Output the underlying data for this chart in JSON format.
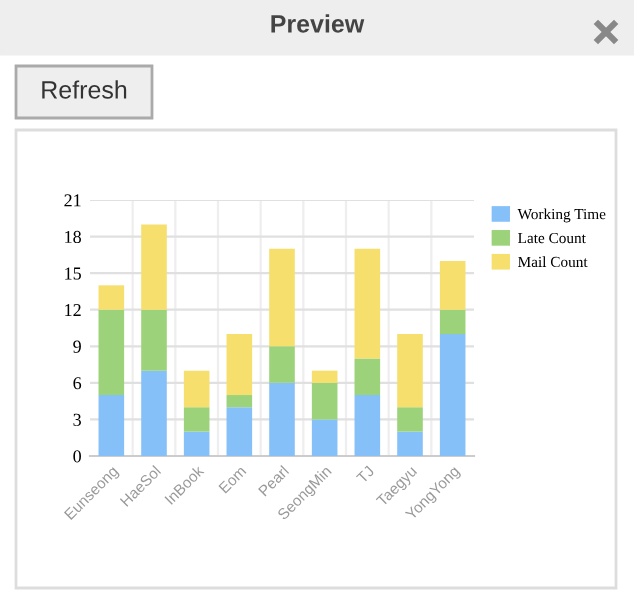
{
  "chart_data": {
    "type": "bar",
    "title": "Preview",
    "annotations": [
      "Refresh"
    ],
    "categories": [
      "Eunseong",
      "HaeSol",
      "InBook",
      "Eom",
      "Pearl",
      "SeongMin",
      "TJ",
      "Taegyu",
      "YongYong"
    ],
    "series": [
      {
        "name": "Working Time",
        "color": "#86c0f8",
        "values": [
          5,
          7,
          2,
          4,
          6,
          3,
          5,
          2,
          10
        ]
      },
      {
        "name": "Late Count",
        "color": "#9cd27a",
        "values": [
          7,
          5,
          2,
          1,
          3,
          3,
          3,
          2,
          2
        ]
      },
      {
        "name": "Mail Count",
        "color": "#f6df6c",
        "values": [
          2,
          7,
          3,
          5,
          8,
          1,
          9,
          6,
          4
        ]
      }
    ],
    "stacked": true,
    "ylim": [
      0,
      21
    ],
    "yticks": [
      0,
      3,
      6,
      9,
      12,
      15,
      18,
      21
    ],
    "grid": true,
    "legend": "top right"
  }
}
